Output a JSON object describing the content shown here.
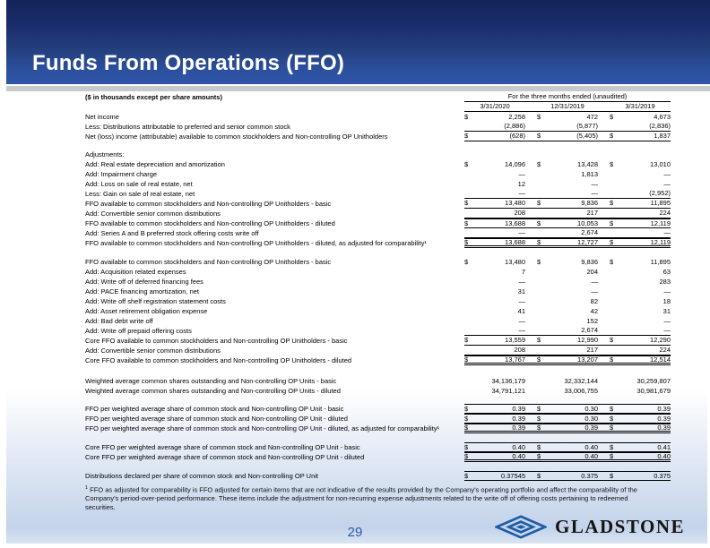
{
  "slide": {
    "title": "Funds From Operations (FFO)",
    "page_number": "29"
  },
  "table": {
    "units_note": "($ in thousands except per share amounts)",
    "period_header": "For the three months ended (unaudited)",
    "columns": [
      "3/31/2020",
      "12/31/2019",
      "3/31/2019"
    ],
    "rows": [
      {
        "label": "Net income",
        "dollar": true,
        "values": [
          "2,258",
          "472",
          "4,673"
        ],
        "cls": ""
      },
      {
        "label": "Less: Distributions attributable to preferred and senior common stock",
        "dollar": false,
        "values": [
          "(2,886)",
          "(5,877)",
          "(2,836)"
        ],
        "cls": "b1"
      },
      {
        "label": "Net (loss) income (attributable) available to common stockholders and Non-controlling OP Unitholders",
        "dollar": true,
        "values": [
          "(628)",
          "(5,405)",
          "1,837"
        ],
        "cls": "b1"
      },
      {
        "spacer": 9
      },
      {
        "label": "Adjustments:",
        "dollar": false,
        "values": [],
        "cls": ""
      },
      {
        "label": "Add: Real estate depreciation and amortization",
        "dollar": true,
        "values": [
          "14,096",
          "13,428",
          "13,010"
        ],
        "cls": ""
      },
      {
        "label": "Add: Impairment charge",
        "dollar": false,
        "values": [
          "—",
          "1,813",
          "—"
        ],
        "cls": ""
      },
      {
        "label": "Add: Loss on sale of real estate, net",
        "dollar": false,
        "values": [
          "12",
          "—",
          "—"
        ],
        "cls": ""
      },
      {
        "label": "Less: Gain on sale of real estate, net",
        "dollar": false,
        "values": [
          "—",
          "—",
          "(2,952)"
        ],
        "cls": "b1"
      },
      {
        "label": "FFO available to common stockholders and Non-controlling OP Unitholders - basic",
        "dollar": true,
        "values": [
          "13,480",
          "9,836",
          "11,895"
        ],
        "cls": "b1"
      },
      {
        "label": "Add: Convertible senior common distributions",
        "dollar": false,
        "values": [
          "208",
          "217",
          "224"
        ],
        "cls": "b1"
      },
      {
        "label": "FFO available to common stockholders and Non-controlling OP Unitholders - diluted",
        "dollar": true,
        "values": [
          "13,688",
          "10,053",
          "12,119"
        ],
        "cls": "bt b1"
      },
      {
        "label": "Add: Series A and B preferred stock offering costs write off",
        "dollar": false,
        "values": [
          "—",
          "2,674",
          "—"
        ],
        "cls": "b1"
      },
      {
        "label": "FFO available to common stockholders and Non-controlling OP Unitholders - diluted, as adjusted for comparability¹",
        "dollar": true,
        "values": [
          "13,688",
          "12,727",
          "12,119"
        ],
        "cls": "bt b2"
      },
      {
        "spacer": 10
      },
      {
        "label": "FFO available to common stockholders and Non-controlling OP Unitholders - basic",
        "dollar": true,
        "values": [
          "13,480",
          "9,836",
          "11,895"
        ],
        "cls": ""
      },
      {
        "label": "Add: Acquisition related expenses",
        "dollar": false,
        "values": [
          "7",
          "204",
          "63"
        ],
        "cls": ""
      },
      {
        "label": "Add: Write off of deferred financing fees",
        "dollar": false,
        "values": [
          "—",
          "—",
          "283"
        ],
        "cls": ""
      },
      {
        "label": "Add: PACE financing amortization, net",
        "dollar": false,
        "values": [
          "31",
          "—",
          "—"
        ],
        "cls": ""
      },
      {
        "label": "Add: Write off shelf registration statement costs",
        "dollar": false,
        "values": [
          "—",
          "82",
          "18"
        ],
        "cls": ""
      },
      {
        "label": "Add: Asset retirement obligation expense",
        "dollar": false,
        "values": [
          "41",
          "42",
          "31"
        ],
        "cls": ""
      },
      {
        "label": "Add: Bad debt write off",
        "dollar": false,
        "values": [
          "—",
          "152",
          "—"
        ],
        "cls": ""
      },
      {
        "label": "Add: Write off prepaid offering costs",
        "dollar": false,
        "values": [
          "—",
          "2,674",
          "—"
        ],
        "cls": "b1"
      },
      {
        "label": "Core FFO available to common stockholders and Non-controlling OP Unitholders - basic",
        "dollar": true,
        "values": [
          "13,559",
          "12,990",
          "12,290"
        ],
        "cls": "b1"
      },
      {
        "label": "Add: Convertible senior common distributions",
        "dollar": false,
        "values": [
          "208",
          "217",
          "224"
        ],
        "cls": "b1"
      },
      {
        "label": "Core FFO available to common stockholders and Non-controlling OP Unitholders - diluted",
        "dollar": true,
        "values": [
          "13,767",
          "13,207",
          "12,514"
        ],
        "cls": "bt b2"
      },
      {
        "spacer": 12
      },
      {
        "label": "Weighted average common shares outstanding and Non-controlling OP Units - basic",
        "dollar": false,
        "values": [
          "34,136,179",
          "32,332,144",
          "30,259,807"
        ],
        "cls": ""
      },
      {
        "label": "Weighted average common shares outstanding and Non-controlling OP Units - diluted",
        "dollar": false,
        "values": [
          "34,791,121",
          "33,006,755",
          "30,981,679"
        ],
        "cls": ""
      },
      {
        "spacer": 9
      },
      {
        "label": "FFO per weighted average share of common stock and Non-controlling OP Unit - basic",
        "dollar": true,
        "values": [
          "0.39",
          "0.30",
          "0.39"
        ],
        "cls": "bt b1"
      },
      {
        "label": "FFO per weighted average share of common stock and Non-controlling OP Unit - diluted",
        "dollar": true,
        "values": [
          "0.39",
          "0.30",
          "0.39"
        ],
        "cls": "bt b1"
      },
      {
        "label": "FFO per weighted average share of common stock and Non-controlling OP Unit - diluted, as adjusted for comparability¹",
        "dollar": true,
        "values": [
          "0.39",
          "0.39",
          "0.39"
        ],
        "cls": "bt b2"
      },
      {
        "spacer": 10
      },
      {
        "label": "Core FFO per weighted average share of common stock and Non-controlling OP Unit - basic",
        "dollar": true,
        "values": [
          "0.40",
          "0.40",
          "0.41"
        ],
        "cls": "bt b1"
      },
      {
        "label": "Core FFO per weighted average share of common stock and Non-controlling OP Unit - diluted",
        "dollar": true,
        "values": [
          "0.40",
          "0.40",
          "0.40"
        ],
        "cls": "bt b2"
      },
      {
        "spacer": 10
      },
      {
        "label": "Distributions declared per share of common stock and Non-controlling OP Unit",
        "dollar": true,
        "values": [
          "0.37545",
          "0.375",
          "0.375"
        ],
        "cls": "bt b1"
      }
    ]
  },
  "footnote": {
    "marker": "1",
    "text": " FFO as adjusted for comparability is FFO adjusted for certain items that are not indicative of the results provided by the Company's operating portfolio and affect the comparability of the Company's period-over-period performance. These items include the adjustment for non-recurring expense adjustments related to the write off of offering costs pertaining to redeemed securities."
  },
  "logo": {
    "text": "GLADSTONE",
    "icon": "gladstone-diamond-icon"
  },
  "colors": {
    "header_gradient_top": "#14235a",
    "header_gradient_bottom": "#2f55a8",
    "gray_bar": "#c8c9cb",
    "bottom_fade": "#c3d3ea",
    "page_number": "#2d5ba6",
    "logo_blue": "#1e5ca6"
  }
}
